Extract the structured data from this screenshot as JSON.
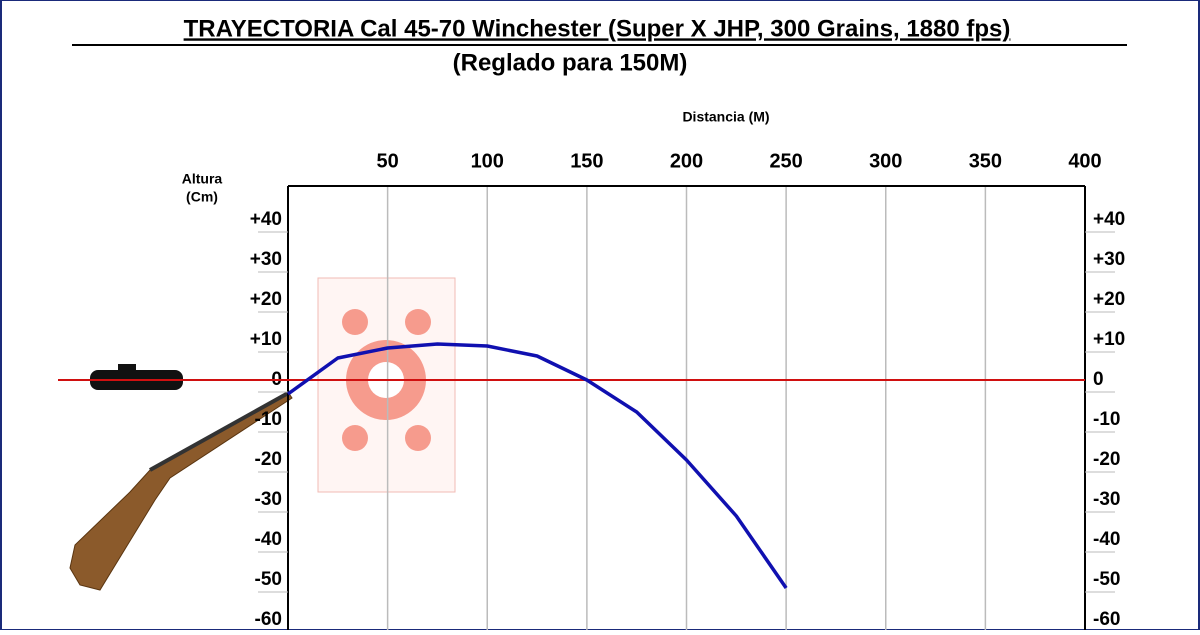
{
  "chart_data": {
    "type": "line",
    "title": "TRAYECTORIA Cal 45-70 Winchester (Super X JHP, 300 Grains, 1880 fps)",
    "subtitle": "(Reglado para 150M)",
    "xlabel": "Distancia (M)",
    "ylabel_lines": [
      "Altura",
      "(Cm)"
    ],
    "x": [
      0,
      25,
      50,
      75,
      100,
      125,
      150,
      175,
      200,
      225,
      250
    ],
    "series": [
      {
        "name": "Trayectoria",
        "color": "#1010b0",
        "values": [
          -3.5,
          5.5,
          8,
          9,
          8.5,
          6,
          0,
          -8,
          -20,
          -34,
          -52
        ]
      }
    ],
    "xlim": [
      0,
      400
    ],
    "xticks": [
      50,
      100,
      150,
      200,
      250,
      300,
      350,
      400
    ],
    "ylim": [
      -62.5,
      48.5
    ],
    "yticks": [
      {
        "value": 40,
        "label": "+40"
      },
      {
        "value": 30,
        "label": "+30"
      },
      {
        "value": 20,
        "label": "+20"
      },
      {
        "value": 10,
        "label": "+10"
      },
      0,
      -10,
      -20,
      -30,
      -40,
      -50,
      -60
    ],
    "zero_line_color": "#d01010",
    "grid": true
  }
}
